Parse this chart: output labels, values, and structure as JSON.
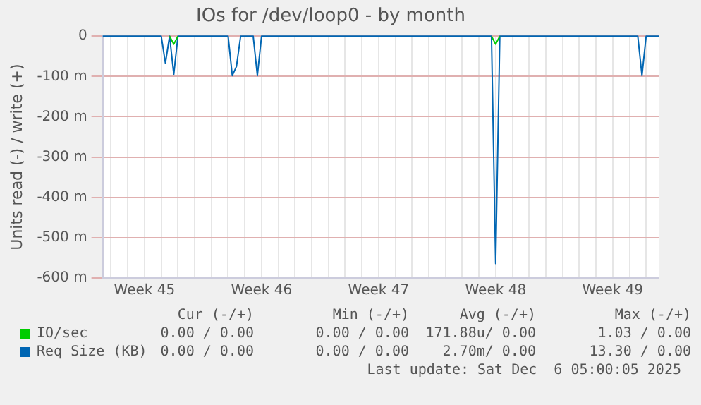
{
  "chart_data": {
    "type": "line",
    "title": "IOs for /dev/loop0 - by month",
    "ylabel": "Units read (-) / write (+)",
    "categories": [
      null,
      null,
      null,
      null,
      null,
      null,
      null,
      null,
      null,
      null,
      "Week 45",
      null,
      null,
      null,
      null,
      null,
      null,
      null,
      null,
      null,
      null,
      null,
      null,
      null,
      null,
      null,
      null,
      null,
      null,
      null,
      null,
      null,
      null,
      null,
      null,
      null,
      null,
      null,
      "Week 46",
      null,
      null,
      null,
      null,
      null,
      null,
      null,
      null,
      null,
      null,
      null,
      null,
      null,
      null,
      null,
      null,
      null,
      null,
      null,
      null,
      null,
      null,
      null,
      null,
      null,
      null,
      null,
      "Week 47",
      null,
      null,
      null,
      null,
      null,
      null,
      null,
      null,
      null,
      null,
      null,
      null,
      null,
      null,
      null,
      null,
      null,
      null,
      null,
      null,
      null,
      null,
      null,
      null,
      null,
      null,
      null,
      "Week 48",
      null,
      null,
      null,
      null,
      null,
      null,
      null,
      null,
      null,
      null,
      null,
      null,
      null,
      null,
      null,
      null,
      null,
      null,
      null,
      null,
      null,
      null,
      null,
      null,
      null,
      null,
      null,
      "Week 49",
      null,
      null,
      null,
      null,
      null,
      null,
      null,
      null,
      null,
      null,
      null
    ],
    "series": [
      {
        "name": "IO/sec",
        "color": "#00cc00",
        "values": [
          null,
          null,
          null,
          null,
          null,
          null,
          null,
          null,
          null,
          null,
          null,
          null,
          null,
          null,
          null,
          null,
          0,
          -20,
          0,
          null,
          null,
          null,
          null,
          null,
          null,
          null,
          null,
          null,
          null,
          null,
          null,
          null,
          null,
          null,
          null,
          null,
          null,
          null,
          null,
          null,
          null,
          null,
          null,
          null,
          null,
          null,
          null,
          null,
          null,
          null,
          null,
          null,
          null,
          null,
          null,
          null,
          null,
          null,
          null,
          null,
          null,
          null,
          null,
          null,
          null,
          null,
          null,
          null,
          null,
          null,
          null,
          null,
          null,
          null,
          null,
          null,
          null,
          null,
          null,
          null,
          null,
          null,
          null,
          null,
          null,
          null,
          null,
          null,
          null,
          null,
          null,
          null,
          null,
          0,
          -20,
          0,
          null,
          null,
          null,
          null,
          null,
          null,
          null,
          null,
          null,
          null,
          null,
          null,
          null,
          null,
          null,
          null,
          null,
          null,
          null,
          null,
          null,
          null,
          null,
          null,
          null,
          null,
          null,
          null,
          null,
          null,
          null,
          null,
          null,
          null,
          null,
          null,
          null,
          null
        ]
      },
      {
        "name": "Req Size (KB)",
        "color": "#0066b3",
        "values": [
          0,
          0,
          0,
          0,
          0,
          0,
          0,
          0,
          0,
          0,
          0,
          0,
          0,
          0,
          0,
          -67,
          0,
          -95,
          0,
          0,
          0,
          0,
          0,
          0,
          0,
          0,
          0,
          0,
          0,
          0,
          0,
          -98,
          -75,
          0,
          0,
          0,
          0,
          -98,
          0,
          0,
          0,
          0,
          0,
          0,
          0,
          0,
          0,
          0,
          0,
          0,
          0,
          0,
          0,
          0,
          0,
          0,
          0,
          0,
          0,
          0,
          0,
          0,
          0,
          0,
          0,
          0,
          0,
          0,
          0,
          0,
          0,
          0,
          0,
          0,
          0,
          0,
          0,
          0,
          0,
          0,
          0,
          0,
          0,
          0,
          0,
          0,
          0,
          0,
          0,
          0,
          0,
          0,
          0,
          0,
          -564,
          0,
          0,
          0,
          0,
          0,
          0,
          0,
          0,
          0,
          0,
          0,
          0,
          0,
          0,
          0,
          0,
          0,
          0,
          0,
          0,
          0,
          0,
          0,
          0,
          0,
          0,
          0,
          0,
          0,
          0,
          0,
          0,
          0,
          0,
          -98,
          0,
          0,
          0,
          0
        ]
      }
    ],
    "ylim": [
      -600,
      0
    ],
    "yticks": [
      {
        "value": 0,
        "label": "0"
      },
      {
        "value": -100,
        "label": "-100 m"
      },
      {
        "value": -200,
        "label": "-200 m"
      },
      {
        "value": -300,
        "label": "-300 m"
      },
      {
        "value": -400,
        "label": "-400 m"
      },
      {
        "value": -500,
        "label": "-500 m"
      },
      {
        "value": -600,
        "label": "-600 m"
      }
    ],
    "grid": true,
    "legend": "bottom",
    "marker": "none",
    "line_style": "solid",
    "annotations": [
      "Cur (-/+)",
      "Min (-/+)",
      "Avg (-/+)",
      "Max (-/+)",
      "0.00 / 0.00",
      "0.00 / 0.00",
      "171.88u/ 0.00",
      "1.03 / 0.00",
      "0.00 / 0.00",
      "0.00 / 0.00",
      "2.70m/ 0.00",
      "13.30 / 0.00",
      "Last update: Sat Dec  6 05:00:05 2025"
    ]
  }
}
